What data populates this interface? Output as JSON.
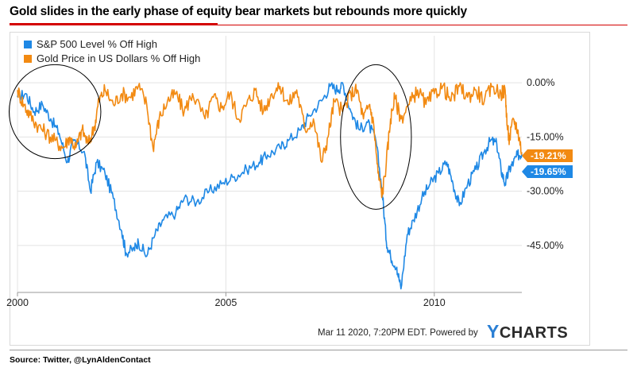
{
  "title": "Gold slides in the early phase of equity bear markets but rebounds more quickly",
  "source": "Source: Twitter, @LynAldenContact",
  "timestamp": "Mar 11 2020, 7:20PM EDT.",
  "powered_by": "Powered by",
  "brand": {
    "first": "Y",
    "rest": "CHARTS"
  },
  "colors": {
    "sp500": "#1e88e5",
    "gold": "#f28a12",
    "title_rule": "#d40000",
    "brand_accent": "#2a7fd4"
  },
  "chart_data": {
    "type": "line",
    "x_ticks": [
      2000,
      2005,
      2010
    ],
    "y_ticks": [
      0,
      -15,
      -30,
      -45
    ],
    "y_tick_labels": [
      "0.00%",
      "-15.00%",
      "-30.00%",
      "-45.00%"
    ],
    "xlim": [
      2000.0,
      2012.1
    ],
    "ylim": [
      -58,
      13
    ],
    "grid": true,
    "legend_position": "top-left",
    "series": [
      {
        "name": "S&P 500 Level % Off High",
        "color": "#1e88e5",
        "last_label": "-19.65%",
        "points": [
          [
            2000.0,
            -4
          ],
          [
            2000.2,
            -3
          ],
          [
            2000.4,
            -8
          ],
          [
            2000.6,
            -6
          ],
          [
            2000.8,
            -10
          ],
          [
            2001.0,
            -14
          ],
          [
            2001.2,
            -22
          ],
          [
            2001.35,
            -16
          ],
          [
            2001.6,
            -19
          ],
          [
            2001.75,
            -30
          ],
          [
            2001.9,
            -22
          ],
          [
            2002.1,
            -25
          ],
          [
            2002.3,
            -32
          ],
          [
            2002.5,
            -41
          ],
          [
            2002.6,
            -47
          ],
          [
            2002.8,
            -46
          ],
          [
            2002.9,
            -44
          ],
          [
            2003.1,
            -48
          ],
          [
            2003.3,
            -42
          ],
          [
            2003.5,
            -38
          ],
          [
            2003.8,
            -36
          ],
          [
            2004.0,
            -32
          ],
          [
            2004.3,
            -33
          ],
          [
            2004.6,
            -30
          ],
          [
            2004.9,
            -28
          ],
          [
            2005.2,
            -26
          ],
          [
            2005.5,
            -24
          ],
          [
            2005.8,
            -22
          ],
          [
            2006.0,
            -20
          ],
          [
            2006.3,
            -18
          ],
          [
            2006.5,
            -16
          ],
          [
            2006.8,
            -13
          ],
          [
            2007.0,
            -9
          ],
          [
            2007.3,
            -5
          ],
          [
            2007.5,
            -1
          ],
          [
            2007.7,
            -2
          ],
          [
            2007.8,
            0
          ],
          [
            2008.0,
            -8
          ],
          [
            2008.2,
            -13
          ],
          [
            2008.4,
            -11
          ],
          [
            2008.6,
            -16
          ],
          [
            2008.75,
            -30
          ],
          [
            2008.85,
            -44
          ],
          [
            2008.95,
            -48
          ],
          [
            2009.1,
            -51
          ],
          [
            2009.2,
            -57
          ],
          [
            2009.35,
            -42
          ],
          [
            2009.5,
            -38
          ],
          [
            2009.7,
            -32
          ],
          [
            2009.9,
            -28
          ],
          [
            2010.1,
            -25
          ],
          [
            2010.3,
            -22
          ],
          [
            2010.45,
            -28
          ],
          [
            2010.6,
            -34
          ],
          [
            2010.8,
            -28
          ],
          [
            2011.0,
            -24
          ],
          [
            2011.2,
            -19
          ],
          [
            2011.35,
            -16
          ],
          [
            2011.5,
            -17
          ],
          [
            2011.6,
            -24
          ],
          [
            2011.7,
            -28
          ],
          [
            2011.8,
            -24
          ],
          [
            2011.9,
            -22
          ],
          [
            2012.0,
            -20
          ],
          [
            2012.1,
            -19.65
          ]
        ]
      },
      {
        "name": "Gold Price in US Dollars % Off High",
        "color": "#f28a12",
        "last_label": "-19.21%",
        "points": [
          [
            2000.0,
            -2
          ],
          [
            2000.15,
            -6
          ],
          [
            2000.3,
            -9
          ],
          [
            2000.5,
            -12
          ],
          [
            2000.7,
            -14
          ],
          [
            2000.9,
            -16
          ],
          [
            2001.1,
            -18
          ],
          [
            2001.25,
            -15
          ],
          [
            2001.4,
            -18
          ],
          [
            2001.55,
            -13
          ],
          [
            2001.7,
            -17
          ],
          [
            2001.85,
            -12
          ],
          [
            2001.95,
            -5
          ],
          [
            2002.1,
            -2
          ],
          [
            2002.3,
            -6
          ],
          [
            2002.5,
            -3
          ],
          [
            2002.7,
            -4
          ],
          [
            2002.9,
            -1
          ],
          [
            2003.1,
            -6
          ],
          [
            2003.25,
            -18
          ],
          [
            2003.4,
            -10
          ],
          [
            2003.6,
            -5
          ],
          [
            2003.8,
            -3
          ],
          [
            2004.0,
            -8
          ],
          [
            2004.2,
            -3
          ],
          [
            2004.5,
            -10
          ],
          [
            2004.7,
            -4
          ],
          [
            2004.9,
            -7
          ],
          [
            2005.1,
            -3
          ],
          [
            2005.3,
            -10
          ],
          [
            2005.5,
            -6
          ],
          [
            2005.7,
            -2
          ],
          [
            2005.9,
            -8
          ],
          [
            2006.1,
            -3
          ],
          [
            2006.3,
            -1
          ],
          [
            2006.5,
            -6
          ],
          [
            2006.7,
            -2
          ],
          [
            2006.9,
            -13
          ],
          [
            2007.1,
            -10
          ],
          [
            2007.3,
            -22
          ],
          [
            2007.45,
            -15
          ],
          [
            2007.6,
            -5
          ],
          [
            2007.8,
            -8
          ],
          [
            2008.0,
            -3
          ],
          [
            2008.15,
            -2
          ],
          [
            2008.3,
            -10
          ],
          [
            2008.45,
            -6
          ],
          [
            2008.55,
            -12
          ],
          [
            2008.65,
            -25
          ],
          [
            2008.75,
            -31
          ],
          [
            2008.85,
            -22
          ],
          [
            2008.95,
            -10
          ],
          [
            2009.05,
            -4
          ],
          [
            2009.2,
            -10
          ],
          [
            2009.4,
            -6
          ],
          [
            2009.6,
            -2
          ],
          [
            2009.8,
            -6
          ],
          [
            2010.0,
            -3
          ],
          [
            2010.2,
            -1
          ],
          [
            2010.4,
            -5
          ],
          [
            2010.6,
            -1
          ],
          [
            2010.8,
            -4
          ],
          [
            2011.0,
            -2
          ],
          [
            2011.2,
            -5
          ],
          [
            2011.4,
            -1
          ],
          [
            2011.6,
            -3
          ],
          [
            2011.7,
            -2
          ],
          [
            2011.75,
            -12
          ],
          [
            2011.8,
            -16
          ],
          [
            2011.9,
            -10
          ],
          [
            2012.0,
            -13
          ],
          [
            2012.1,
            -19.21
          ]
        ]
      }
    ],
    "annotations": [
      {
        "type": "ellipse",
        "label": "",
        "center": [
          2000.9,
          -8
        ],
        "radius": [
          1.1,
          13
        ]
      },
      {
        "type": "ellipse",
        "label": "",
        "center": [
          2008.6,
          -15
        ],
        "radius": [
          0.85,
          20
        ]
      }
    ]
  }
}
